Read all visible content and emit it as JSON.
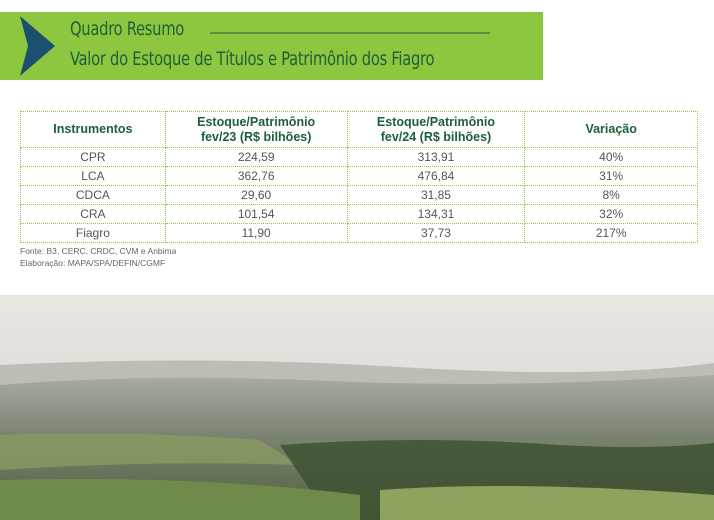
{
  "header": {
    "title": "Quadro Resumo",
    "subtitle": "Valor do Estoque de Títulos e Patrimônio dos Fiagro"
  },
  "table": {
    "columns": [
      [
        "Instrumentos"
      ],
      [
        "Estoque/Patrimônio",
        "fev/23 (R$ bilhões)"
      ],
      [
        "Estoque/Patrimônio",
        "fev/24 (R$ bilhões)"
      ],
      [
        "Variação"
      ]
    ],
    "rows": [
      [
        "CPR",
        "224,59",
        "313,91",
        "40%"
      ],
      [
        "LCA",
        "362,76",
        "476,84",
        "31%"
      ],
      [
        "CDCA",
        "29,60",
        "31,85",
        "8%"
      ],
      [
        "CRA",
        "101,54",
        "134,31",
        "32%"
      ],
      [
        "Fiagro",
        "11,90",
        "37,73",
        "217%"
      ]
    ]
  },
  "notes": [
    "Fonte: B3, CERC, CRDC, CVM e Anbima",
    "Elaboração: MAPA/SPA/DEFIN/CGMF"
  ]
}
